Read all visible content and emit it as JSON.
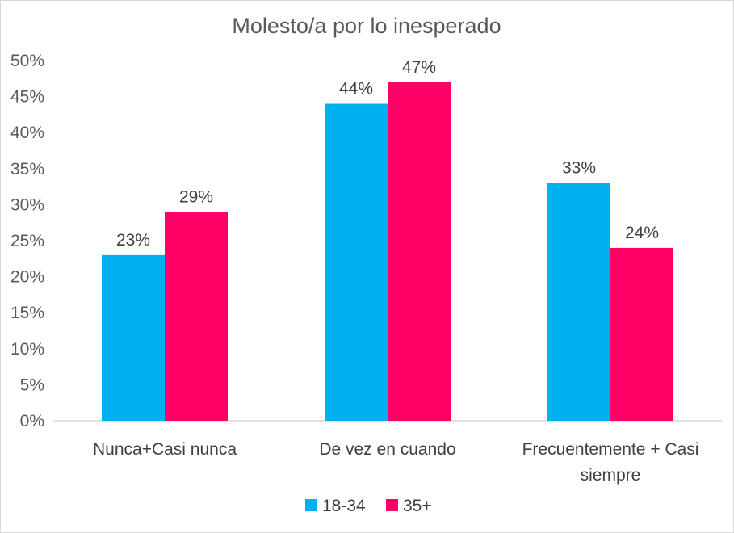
{
  "chart_data": {
    "type": "bar",
    "title": "Molesto/a por lo inesperado",
    "xlabel": "",
    "ylabel": "",
    "categories": [
      [
        "Nunca+Casi nunca"
      ],
      [
        "De vez en cuando"
      ],
      [
        "Frecuentemente + Casi",
        "siempre"
      ]
    ],
    "series": [
      {
        "name": "18-34",
        "color": "#00B0F0",
        "values": [
          23,
          44,
          33
        ],
        "labels": [
          "23%",
          "44%",
          "33%"
        ]
      },
      {
        "name": "35+",
        "color": "#FF0066",
        "values": [
          29,
          47,
          24
        ],
        "labels": [
          "29%",
          "47%",
          "24%"
        ]
      }
    ],
    "ylim": [
      0,
      50
    ],
    "yticks": [
      "0%",
      "5%",
      "10%",
      "15%",
      "20%",
      "25%",
      "30%",
      "35%",
      "40%",
      "45%",
      "50%"
    ],
    "grid": false,
    "legend_position": "bottom",
    "axis_color": "#d9d9d9"
  }
}
